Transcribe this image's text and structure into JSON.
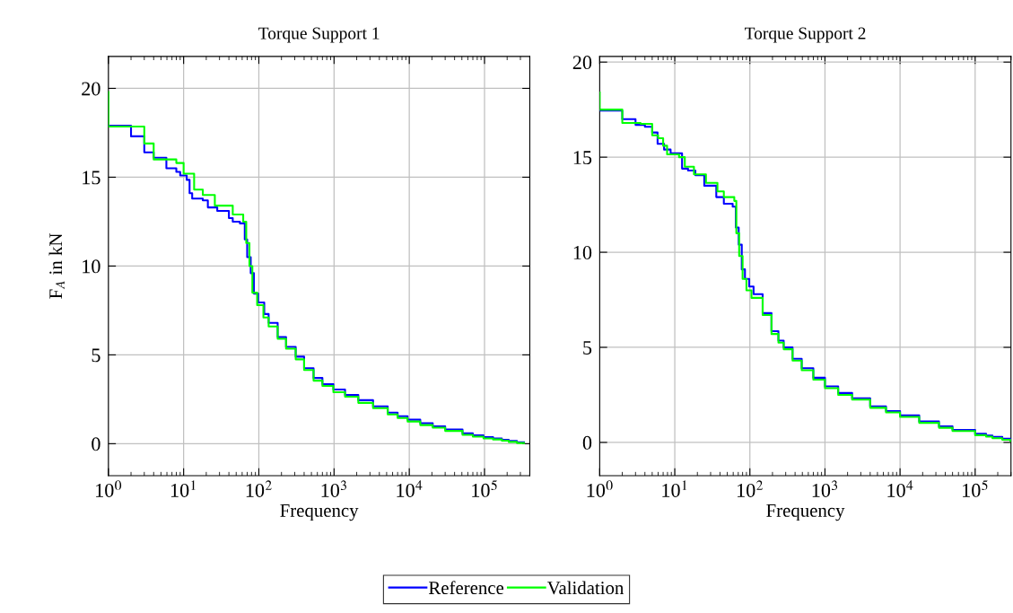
{
  "chart_data": [
    {
      "type": "step",
      "title": "Torque Support 1",
      "xlabel": "Frequency",
      "ylabel": "F$_{A}$ in kN",
      "log": "x",
      "grid": true,
      "legend": "bottom",
      "xlim": [
        1,
        400000
      ],
      "ylim": [
        -1.8,
        21.8
      ],
      "xticks": [
        {
          "value": 1,
          "label": "10$^{0}$"
        },
        {
          "value": 10,
          "label": "10$^{1}$"
        },
        {
          "value": 100,
          "label": "10$^{2}$"
        },
        {
          "value": 1000,
          "label": "10$^{3}$"
        },
        {
          "value": 10000,
          "label": "10$^{4}$"
        },
        {
          "value": 100000,
          "label": "10$^{5}$"
        }
      ],
      "yticks": [
        0,
        5,
        10,
        15,
        20
      ],
      "series": [
        {
          "name": "Reference",
          "color": "#0000ff",
          "x": [
            1,
            2,
            3,
            4,
            5.9,
            8,
            9,
            11,
            12,
            13,
            18,
            21,
            28,
            40,
            45,
            56,
            65,
            70,
            78,
            86,
            98,
            118,
            135,
            178,
            230,
            309,
            400,
            534,
            700,
            980,
            1400,
            2100,
            3300,
            5170,
            7000,
            9500,
            14000,
            20500,
            30000,
            51000,
            70000,
            97000,
            130000,
            170000,
            210000,
            270000,
            335000
          ],
          "values": [
            17.9,
            17.3,
            16.4,
            16.1,
            15.5,
            15.3,
            15.1,
            14.85,
            14.1,
            13.8,
            13.7,
            13.3,
            13.1,
            12.7,
            12.5,
            12.4,
            11.5,
            10.5,
            9.6,
            8.45,
            7.95,
            7.3,
            6.8,
            6.0,
            5.45,
            4.9,
            4.25,
            3.7,
            3.35,
            3.05,
            2.75,
            2.45,
            2.1,
            1.75,
            1.55,
            1.35,
            1.15,
            0.98,
            0.8,
            0.58,
            0.47,
            0.37,
            0.3,
            0.22,
            0.15,
            0.08,
            0.08
          ]
        },
        {
          "name": "Validation",
          "color": "#00ff00",
          "x": [
            1,
            1,
            3,
            4,
            8,
            10,
            13.8,
            18,
            26,
            45,
            62,
            68,
            75,
            82,
            95,
            115,
            135,
            178,
            230,
            309,
            400,
            534,
            700,
            980,
            1400,
            2100,
            3300,
            5170,
            7000,
            9500,
            14000,
            20500,
            30000,
            51000,
            70000,
            97000,
            130000,
            170000,
            210000,
            270000,
            335000
          ],
          "values": [
            19.8,
            17.85,
            16.9,
            16.0,
            15.8,
            15.2,
            14.3,
            14.0,
            13.4,
            12.9,
            12.5,
            11.3,
            10.0,
            8.5,
            7.8,
            7.1,
            6.6,
            5.9,
            5.35,
            4.75,
            4.15,
            3.55,
            3.25,
            2.9,
            2.65,
            2.3,
            2.0,
            1.65,
            1.45,
            1.25,
            1.05,
            0.9,
            0.72,
            0.5,
            0.4,
            0.3,
            0.24,
            0.17,
            0.1,
            0.04,
            0.04
          ]
        }
      ]
    },
    {
      "type": "step",
      "title": "Torque Support 2",
      "xlabel": "Frequency",
      "log": "x",
      "grid": true,
      "legend": "bottom",
      "xlim": [
        1,
        300000
      ],
      "ylim": [
        -1.75,
        20.3
      ],
      "xticks": [
        {
          "value": 1,
          "label": "10$^{0}$"
        },
        {
          "value": 10,
          "label": "10$^{1}$"
        },
        {
          "value": 100,
          "label": "10$^{2}$"
        },
        {
          "value": 1000,
          "label": "10$^{3}$"
        },
        {
          "value": 10000,
          "label": "10$^{4}$"
        },
        {
          "value": 100000,
          "label": "10$^{5}$"
        }
      ],
      "yticks": [
        0,
        5,
        10,
        15,
        20
      ],
      "series": [
        {
          "name": "Reference",
          "color": "#0000ff",
          "x": [
            1,
            2,
            3,
            4,
            5,
            5.9,
            7.2,
            8.8,
            12.5,
            15,
            18.8,
            24.7,
            35.7,
            45,
            59,
            65,
            71,
            78,
            86,
            98,
            112,
            148,
            194,
            240,
            282,
            370,
            490,
            700,
            1000,
            1500,
            2300,
            4000,
            6500,
            10000,
            18000,
            33000,
            50000,
            100000,
            140000,
            170000,
            230000,
            295000
          ],
          "values": [
            17.45,
            17.0,
            16.7,
            16.6,
            16.3,
            15.7,
            15.4,
            15.2,
            14.4,
            14.3,
            14.05,
            13.5,
            12.9,
            12.55,
            12.4,
            11.3,
            10.4,
            9.1,
            8.6,
            8.2,
            7.8,
            6.8,
            5.85,
            5.35,
            5.0,
            4.4,
            3.9,
            3.4,
            2.95,
            2.6,
            2.32,
            1.9,
            1.65,
            1.42,
            1.1,
            0.84,
            0.66,
            0.45,
            0.36,
            0.29,
            0.2,
            0.13
          ]
        },
        {
          "name": "Validation",
          "color": "#00ff00",
          "x": [
            1,
            1,
            2,
            3.5,
            5,
            6,
            7,
            7.9,
            11.4,
            13.6,
            18,
            26,
            37,
            45,
            62,
            66,
            72,
            80,
            90,
            105,
            148,
            194,
            240,
            282,
            370,
            490,
            700,
            1000,
            1500,
            2300,
            4000,
            6500,
            10000,
            18000,
            33000,
            50000,
            100000,
            140000,
            170000,
            230000,
            295000,
            300000
          ],
          "values": [
            18.4,
            17.5,
            16.8,
            16.75,
            16.15,
            16.0,
            15.6,
            15.15,
            15.0,
            14.5,
            14.1,
            13.65,
            13.2,
            12.9,
            12.7,
            11.0,
            9.8,
            8.6,
            8.0,
            7.6,
            6.7,
            5.7,
            5.25,
            4.9,
            4.3,
            3.8,
            3.3,
            2.85,
            2.5,
            2.25,
            1.82,
            1.58,
            1.34,
            1.03,
            0.77,
            0.6,
            0.38,
            0.3,
            0.22,
            0.14,
            0.07,
            0.07
          ]
        }
      ]
    }
  ]
}
